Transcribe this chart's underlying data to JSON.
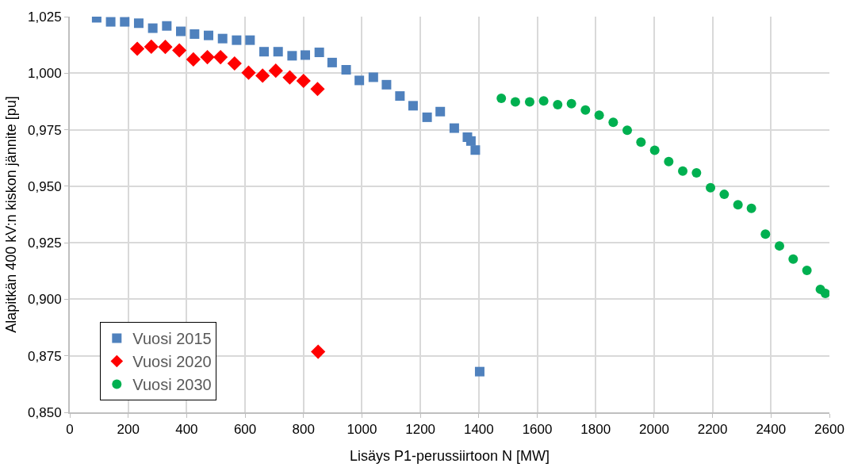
{
  "chart_data": {
    "type": "scatter",
    "xlabel": "Lisäys P1-perussiirtoon N [MW]",
    "ylabel": "Alapitkän 400 kV:n kiskon jännite [pu]",
    "xlim": [
      0,
      2600
    ],
    "xticks": [
      0,
      200,
      400,
      600,
      800,
      1000,
      1200,
      1400,
      1600,
      1800,
      2000,
      2200,
      2400,
      2600
    ],
    "ylim": [
      0.85,
      1.025
    ],
    "yticks": [
      {
        "value": 0.85,
        "label": "0,850"
      },
      {
        "value": 0.875,
        "label": "0,875"
      },
      {
        "value": 0.9,
        "label": "0,900"
      },
      {
        "value": 0.925,
        "label": "0,925"
      },
      {
        "value": 0.95,
        "label": "0,950"
      },
      {
        "value": 0.975,
        "label": "0,975"
      },
      {
        "value": 1.0,
        "label": "1,000"
      },
      {
        "value": 1.025,
        "label": "1,025"
      }
    ],
    "grid": true,
    "legend": "bottom left",
    "series": [
      {
        "name": "Vuosi 2015",
        "color": "#4f81bd",
        "marker": "square",
        "x": [
          92,
          140,
          188,
          236,
          284,
          332,
          380,
          427,
          475,
          523,
          571,
          617,
          665,
          713,
          761,
          806,
          854,
          898,
          946,
          991,
          1039,
          1084,
          1130,
          1175,
          1223,
          1268,
          1316,
          1361,
          1373,
          1388,
          1403
        ],
        "values": [
          1.0245,
          1.0227,
          1.0227,
          1.0221,
          1.0199,
          1.0209,
          1.0185,
          1.0173,
          1.0167,
          1.0153,
          1.0146,
          1.0146,
          1.0095,
          1.0095,
          1.0077,
          1.008,
          1.0092,
          1.0047,
          1.0015,
          0.9968,
          0.9982,
          0.9949,
          0.9899,
          0.9856,
          0.9805,
          0.983,
          0.9757,
          0.9717,
          0.97,
          0.966,
          0.868
        ]
      },
      {
        "name": "Vuosi 2020",
        "color": "#ff0000",
        "marker": "diamond",
        "x": [
          231,
          279,
          327,
          375,
          423,
          471,
          516,
          564,
          612,
          660,
          705,
          753,
          800,
          848,
          850
        ],
        "values": [
          1.0108,
          1.0117,
          1.0116,
          1.0101,
          1.0061,
          1.0071,
          1.0071,
          1.0043,
          1.0002,
          0.9989,
          1.0011,
          0.9981,
          0.9966,
          0.993,
          0.8768
        ]
      },
      {
        "name": "Vuosi 2030",
        "color": "#00b050",
        "marker": "circle",
        "x": [
          1477,
          1525,
          1574,
          1622,
          1670,
          1717,
          1765,
          1812,
          1860,
          1908,
          1955,
          2002,
          2050,
          2098,
          2145,
          2193,
          2240,
          2287,
          2333,
          2381,
          2429,
          2476,
          2523,
          2569,
          2586
        ],
        "values": [
          0.9889,
          0.9873,
          0.9873,
          0.9877,
          0.9861,
          0.9865,
          0.9837,
          0.9814,
          0.9783,
          0.9748,
          0.9695,
          0.9659,
          0.9609,
          0.9567,
          0.9559,
          0.9493,
          0.9464,
          0.9418,
          0.9402,
          0.9288,
          0.9236,
          0.9178,
          0.9128,
          0.9044,
          0.9026
        ]
      }
    ]
  }
}
